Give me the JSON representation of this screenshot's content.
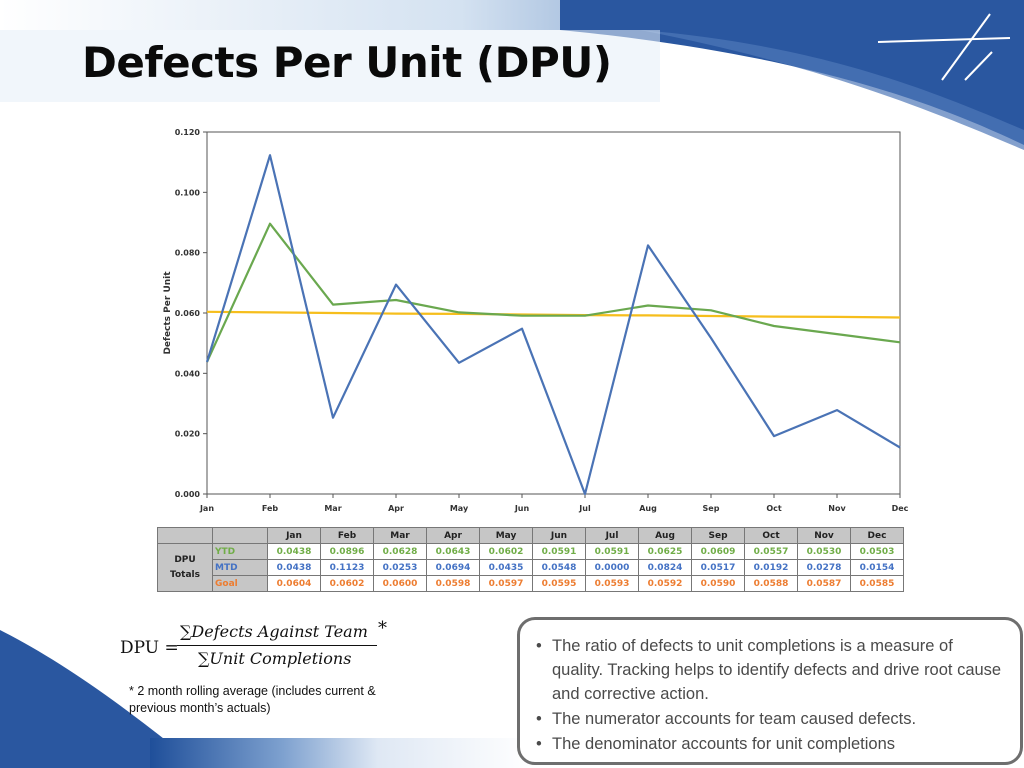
{
  "slide": {
    "title": "Defects Per Unit (DPU)",
    "formula": {
      "lhs": "DPU =",
      "numerator": "∑Defects Against Team",
      "denominator": "∑Unit Completions",
      "asterisk": "*"
    },
    "footnote": "* 2 month rolling average (includes current & previous month’s actuals)",
    "bullets": [
      "The ratio of defects to unit completions is a measure of quality. Tracking helps to identify defects and drive root cause and corrective action.",
      "The numerator accounts for team caused defects.",
      "The denominator accounts for unit completions"
    ]
  },
  "table": {
    "row_header": [
      "DPU",
      "Totals"
    ],
    "months": [
      "Jan",
      "Feb",
      "Mar",
      "Apr",
      "May",
      "Jun",
      "Jul",
      "Aug",
      "Sep",
      "Oct",
      "Nov",
      "Dec"
    ],
    "rows": [
      {
        "label": "YTD",
        "color": "#70ad47",
        "values": [
          "0.0438",
          "0.0896",
          "0.0628",
          "0.0643",
          "0.0602",
          "0.0591",
          "0.0591",
          "0.0625",
          "0.0609",
          "0.0557",
          "0.0530",
          "0.0503"
        ]
      },
      {
        "label": "MTD",
        "color": "#4472c4",
        "values": [
          "0.0438",
          "0.1123",
          "0.0253",
          "0.0694",
          "0.0435",
          "0.0548",
          "0.0000",
          "0.0824",
          "0.0517",
          "0.0192",
          "0.0278",
          "0.0154"
        ]
      },
      {
        "label": "Goal",
        "color": "#ed7d31",
        "values": [
          "0.0604",
          "0.0602",
          "0.0600",
          "0.0598",
          "0.0597",
          "0.0595",
          "0.0593",
          "0.0592",
          "0.0590",
          "0.0588",
          "0.0587",
          "0.0585"
        ]
      }
    ]
  },
  "chart_data": {
    "type": "line",
    "title": "",
    "xlabel": "",
    "ylabel": "Defects Per Unit",
    "categories": [
      "Jan",
      "Feb",
      "Mar",
      "Apr",
      "May",
      "Jun",
      "Jul",
      "Aug",
      "Sep",
      "Oct",
      "Nov",
      "Dec"
    ],
    "yticks": [
      "0.000",
      "0.020",
      "0.040",
      "0.060",
      "0.080",
      "0.100",
      "0.120"
    ],
    "ylim": [
      0,
      0.12
    ],
    "grid": false,
    "legend": "none",
    "series": [
      {
        "color": "#4a73b5",
        "values": [
          0.0438,
          0.1123,
          0.0253,
          0.0694,
          0.0435,
          0.0548,
          0.0,
          0.0824,
          0.0517,
          0.0192,
          0.0278,
          0.0154
        ]
      },
      {
        "color": "#6aa84f",
        "values": [
          0.0438,
          0.0896,
          0.0628,
          0.0643,
          0.0602,
          0.0591,
          0.0591,
          0.0625,
          0.0609,
          0.0557,
          0.053,
          0.0503
        ]
      },
      {
        "color": "#f6be1c",
        "values": [
          0.0604,
          0.0602,
          0.06,
          0.0598,
          0.0597,
          0.0595,
          0.0593,
          0.0592,
          0.059,
          0.0588,
          0.0587,
          0.0585
        ]
      }
    ]
  },
  "theme": {
    "navy": "#1f4f9a",
    "light_blue": "#c9daef",
    "box_border": "#6e6e6e"
  }
}
